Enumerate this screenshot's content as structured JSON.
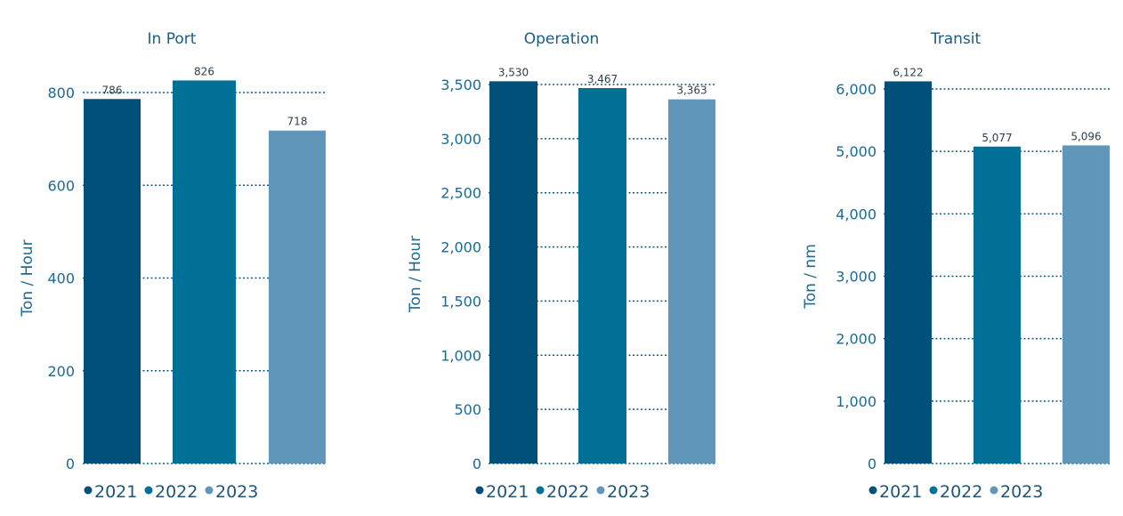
{
  "chart_data": [
    {
      "type": "bar",
      "title": "In Port",
      "ylabel": "Ton / Hour",
      "xlabel": "",
      "categories": [
        "2021",
        "2022",
        "2023"
      ],
      "values": [
        786,
        826,
        718
      ],
      "value_labels": [
        "786",
        "826",
        "718"
      ],
      "ylim": [
        0,
        800
      ],
      "yticks": [
        0,
        200,
        400,
        600,
        800
      ],
      "ytick_labels": [
        "0",
        "200",
        "400",
        "600",
        "800"
      ],
      "colors": [
        "#00507a",
        "#007096",
        "#6096ba"
      ],
      "grid": true,
      "legend_position": "bottom-left",
      "legend": [
        "2021",
        "2022",
        "2023"
      ]
    },
    {
      "type": "bar",
      "title": "Operation",
      "ylabel": "Ton / Hour",
      "xlabel": "",
      "categories": [
        "2021",
        "2022",
        "2023"
      ],
      "values": [
        3530,
        3467,
        3363
      ],
      "value_labels": [
        "3,530",
        "3,467",
        "3,363"
      ],
      "ylim": [
        0,
        3500
      ],
      "yticks": [
        0,
        500,
        1000,
        1500,
        2000,
        2500,
        3000,
        3500
      ],
      "ytick_labels": [
        "0",
        "500",
        "1,000",
        "1,500",
        "2,000",
        "2,500",
        "3,000",
        "3,500"
      ],
      "colors": [
        "#00507a",
        "#007096",
        "#6096ba"
      ],
      "grid": true,
      "legend_position": "bottom-left",
      "legend": [
        "2021",
        "2022",
        "2023"
      ]
    },
    {
      "type": "bar",
      "title": "Transit",
      "ylabel": "Ton / nm",
      "xlabel": "",
      "categories": [
        "2021",
        "2022",
        "2023"
      ],
      "values": [
        6122,
        5077,
        5096
      ],
      "value_labels": [
        "6,122",
        "5,077",
        "5,096"
      ],
      "ylim": [
        0,
        6000
      ],
      "yticks": [
        0,
        1000,
        2000,
        3000,
        4000,
        5000,
        6000
      ],
      "ytick_labels": [
        "0",
        "1,000",
        "2,000",
        "3,000",
        "4,000",
        "5,000",
        "6,000"
      ],
      "colors": [
        "#00507a",
        "#007096",
        "#6096ba"
      ],
      "grid": true,
      "legend_position": "bottom-left",
      "legend": [
        "2021",
        "2022",
        "2023"
      ]
    }
  ]
}
